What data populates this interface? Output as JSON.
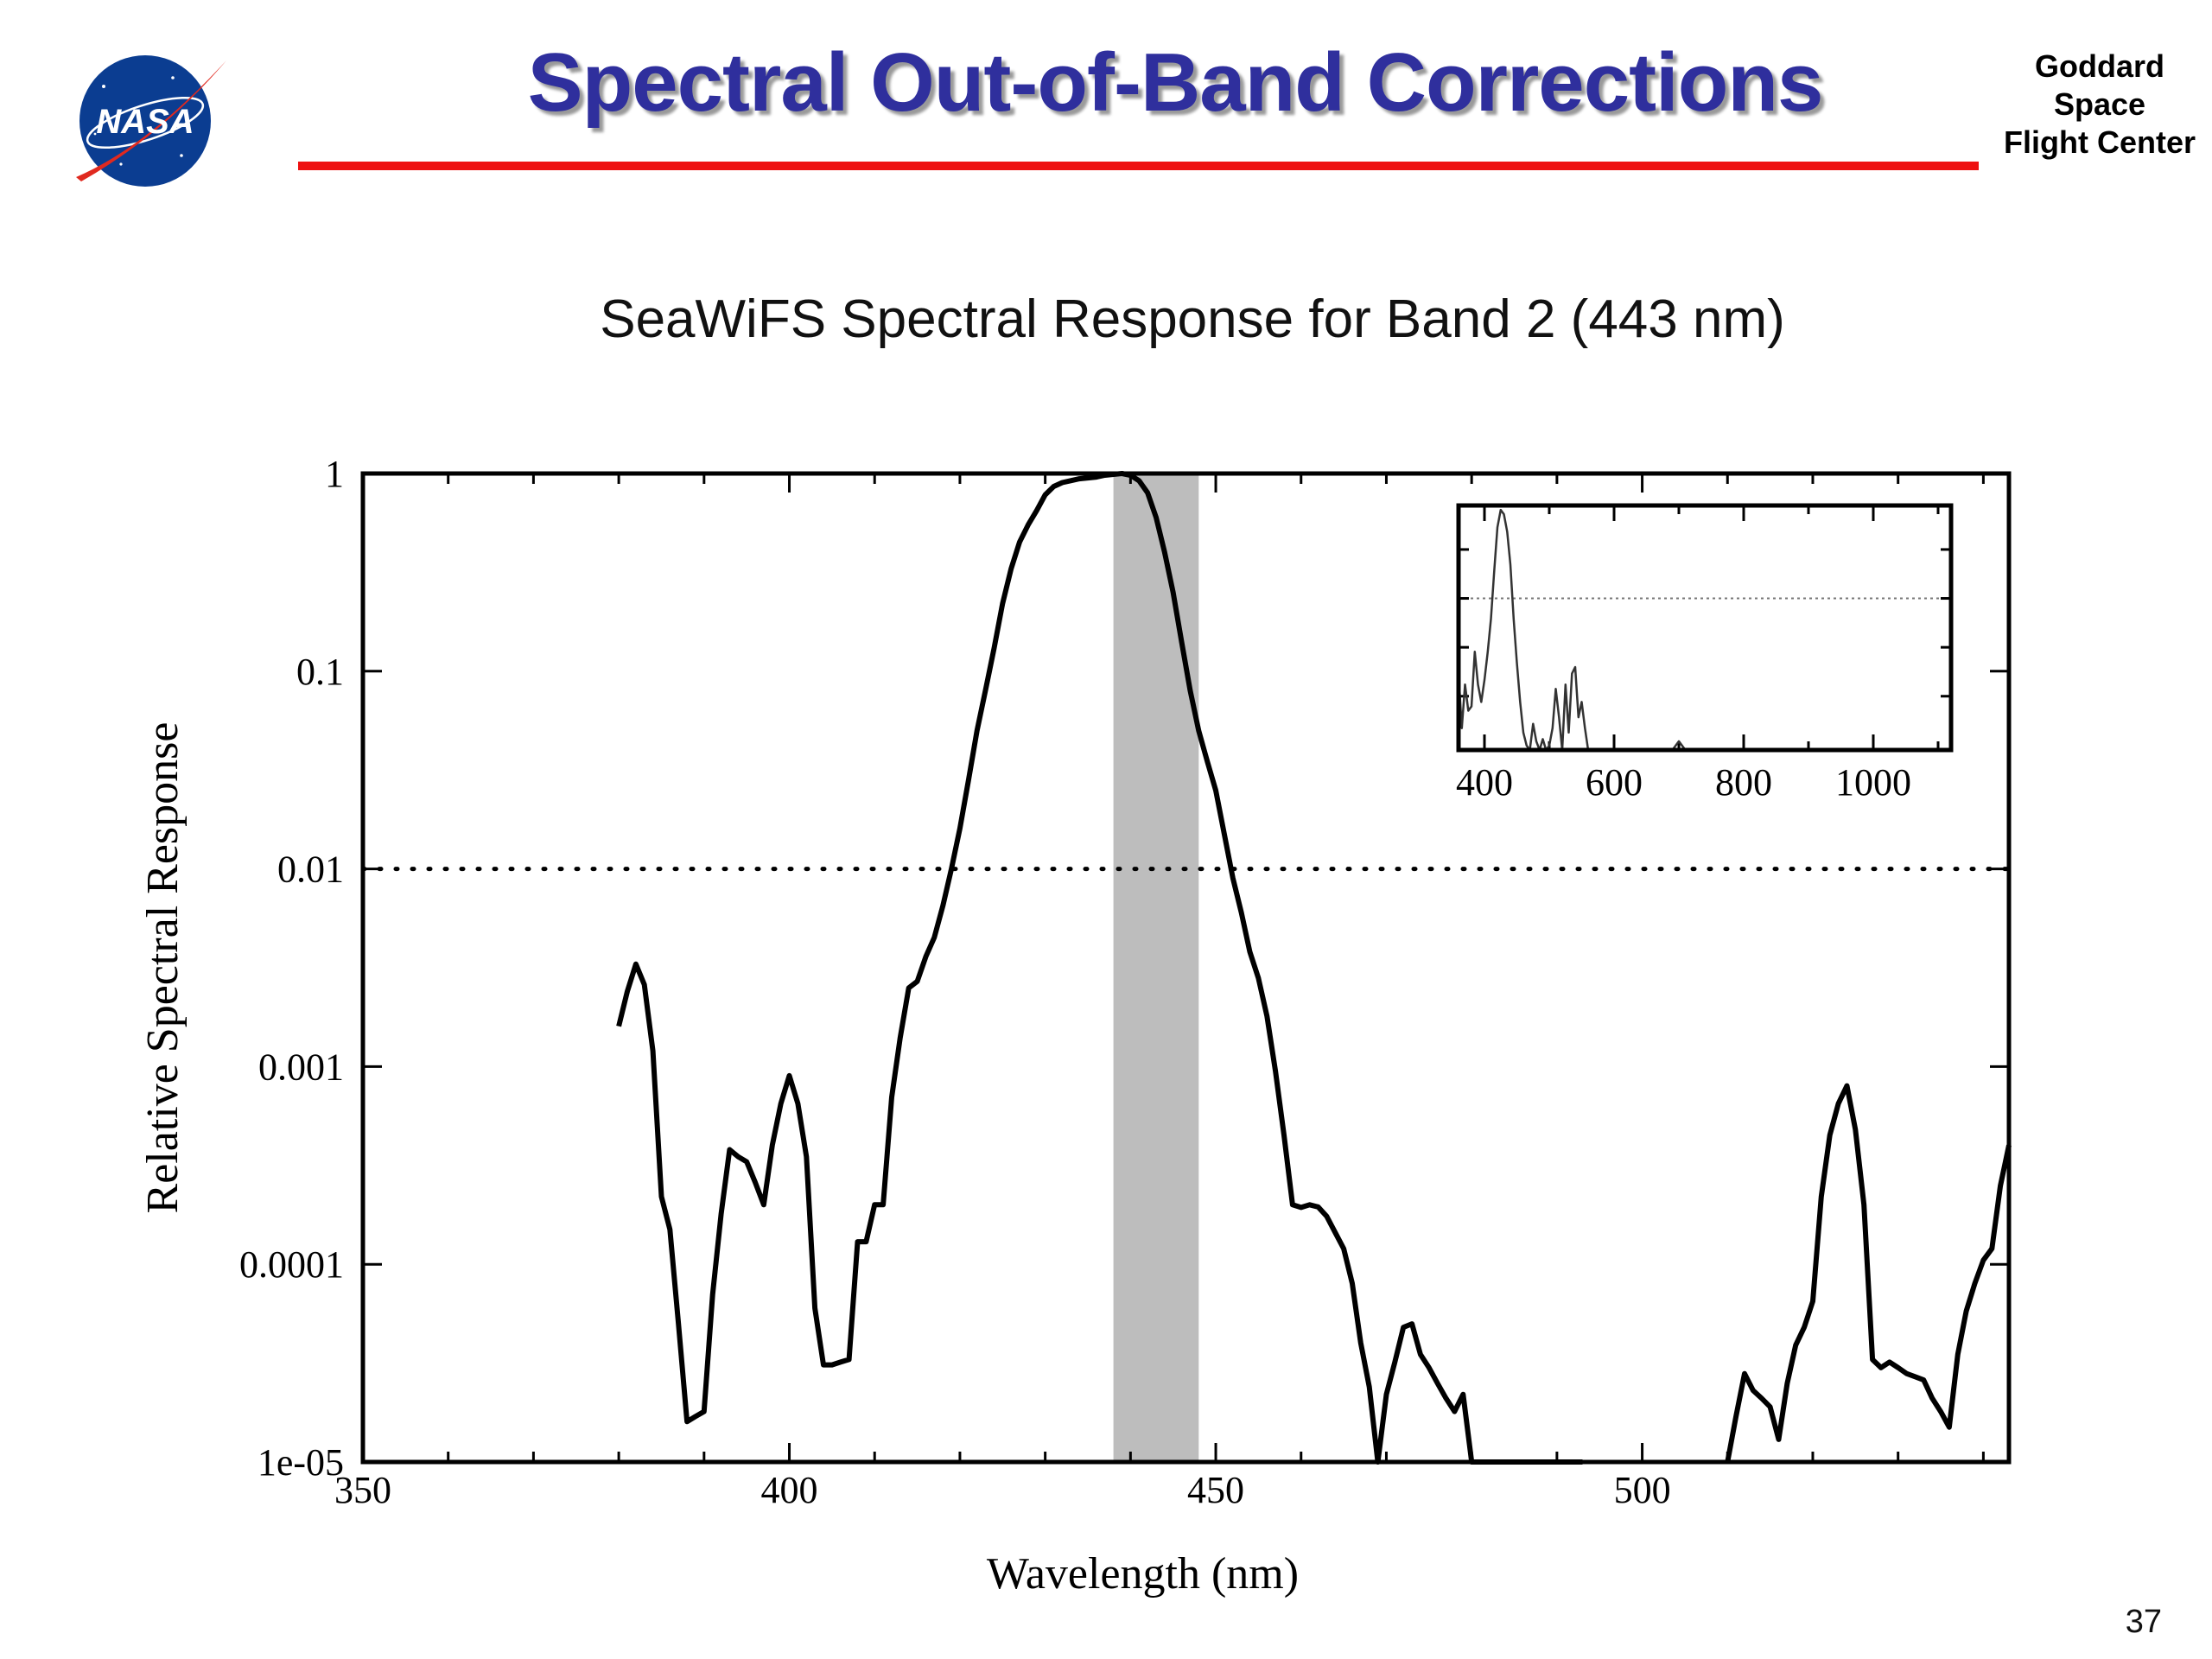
{
  "header": {
    "title": "Spectral Out-of-Band Corrections",
    "org_lines": [
      "Goddard",
      "Space",
      "Flight Center"
    ],
    "logo_text": "NASA"
  },
  "footer": {
    "page_number": "37"
  },
  "colors": {
    "title": "#2f2f9d",
    "title_rule": "#ee1111",
    "band_shade": "#bdbdbd",
    "curve": "#000000"
  },
  "chart_data": [
    {
      "type": "line",
      "title": "SeaWiFS Spectral Response for Band 2 (443 nm)",
      "xlabel": "Wavelength (nm)",
      "ylabel": "Relative Spectral Response",
      "y_scale": "log",
      "xlim": [
        350,
        543
      ],
      "ylim": [
        1e-05,
        1
      ],
      "x_ticks": [
        350,
        400,
        450,
        500
      ],
      "y_ticks": [
        {
          "value": 1,
          "label": "1"
        },
        {
          "value": 0.1,
          "label": "0.1"
        },
        {
          "value": 0.01,
          "label": "0.01"
        },
        {
          "value": 0.001,
          "label": "0.001"
        },
        {
          "value": 0.0001,
          "label": "0.0001"
        },
        {
          "value": 1e-05,
          "label": "1e-05"
        }
      ],
      "threshold_line": {
        "y": 0.01,
        "style": "dotted"
      },
      "shaded_band": {
        "x_start": 438,
        "x_end": 448
      },
      "grid": false,
      "legend": "none",
      "series": [
        {
          "x": [
            380,
            381,
            382,
            383,
            384,
            385,
            386,
            387,
            388,
            389,
            390,
            391,
            392,
            393,
            394,
            395,
            396,
            397,
            398,
            399,
            400,
            401,
            402,
            403,
            404,
            405,
            406,
            407,
            408,
            409,
            410,
            411,
            412,
            413,
            414,
            415,
            416,
            417,
            418,
            419,
            420,
            421,
            422,
            423,
            424,
            425,
            426,
            427,
            428,
            429,
            430,
            431,
            432,
            433,
            434,
            435,
            436,
            437,
            438,
            439,
            440,
            441,
            442,
            443,
            444,
            445,
            446,
            447,
            448,
            449,
            450,
            451,
            452,
            453,
            454,
            455,
            456,
            457,
            458,
            459,
            460,
            461,
            462,
            463,
            464,
            465,
            466,
            467,
            468,
            469,
            470,
            471,
            472,
            473,
            474,
            475,
            476,
            477,
            478,
            479,
            480,
            481,
            482,
            483,
            484,
            485,
            486,
            487,
            488,
            489,
            490,
            491,
            492,
            493
          ],
          "y": [
            0.0016,
            0.0024,
            0.0033,
            0.0026,
            0.0012,
            0.00022,
            0.00015,
            5e-05,
            1.6e-05,
            1.7e-05,
            1.8e-05,
            7e-05,
            0.00018,
            0.00038,
            0.00035,
            0.00033,
            0.00026,
            0.0002,
            0.0004,
            0.00065,
            0.0009,
            0.00065,
            0.00035,
            6e-05,
            3.1e-05,
            3.1e-05,
            3.2e-05,
            3.3e-05,
            0.00013,
            0.00013,
            0.0002,
            0.0002,
            0.0007,
            0.0014,
            0.0025,
            0.0027,
            0.0036,
            0.0045,
            0.0065,
            0.01,
            0.016,
            0.028,
            0.05,
            0.08,
            0.13,
            0.22,
            0.33,
            0.45,
            0.55,
            0.65,
            0.78,
            0.86,
            0.9,
            0.92,
            0.94,
            0.95,
            0.96,
            0.98,
            0.99,
            1.0,
            0.98,
            0.92,
            0.8,
            0.6,
            0.4,
            0.25,
            0.14,
            0.08,
            0.05,
            0.035,
            0.025,
            0.015,
            0.009,
            0.006,
            0.0038,
            0.0028,
            0.0018,
            0.00095,
            0.00045,
            0.0002,
            0.000194,
            0.0002,
            0.000195,
            0.000175,
            0.000145,
            0.00012,
            8e-05,
            4e-05,
            2.4e-05,
            1e-05,
            2.2e-05,
            3.2e-05,
            4.8e-05,
            5e-05,
            3.5e-05,
            3e-05,
            2.5e-05,
            2.1e-05,
            1.8e-05,
            2.2e-05,
            1e-05,
            1e-05,
            1e-05,
            1e-05,
            1e-05,
            1e-05,
            1e-05,
            1e-05,
            1e-05,
            1e-05,
            1e-05,
            1e-05,
            1e-05,
            1e-05
          ]
        },
        {
          "x": [
            510,
            511,
            512,
            513,
            514,
            515,
            516,
            517,
            518,
            519,
            520,
            521,
            522,
            523,
            524,
            525,
            526,
            527,
            528,
            529,
            530,
            531,
            532,
            533,
            534,
            535,
            536,
            537,
            538,
            539,
            540,
            541,
            542,
            543
          ],
          "y": [
            1e-05,
            1.7e-05,
            2.8e-05,
            2.3e-05,
            2.1e-05,
            1.9e-05,
            1.3e-05,
            2.5e-05,
            3.9e-05,
            4.8e-05,
            6.5e-05,
            0.00022,
            0.00045,
            0.00065,
            0.0008,
            0.00048,
            0.0002,
            3.3e-05,
            3e-05,
            3.2e-05,
            3e-05,
            2.8e-05,
            2.7e-05,
            2.6e-05,
            2.1e-05,
            1.8e-05,
            1.5e-05,
            3.5e-05,
            5.8e-05,
            8e-05,
            0.000105,
            0.00012,
            0.00025,
            0.0004
          ]
        }
      ]
    },
    {
      "type": "line",
      "title": "",
      "xlabel": "",
      "ylabel": "",
      "xlim": [
        360,
        1120
      ],
      "x_ticks": [
        400,
        600,
        800,
        1000
      ],
      "threshold_line": {
        "style": "dotted"
      },
      "series": [
        {
          "x": [
            360,
            365,
            370,
            375,
            380,
            385,
            390,
            395,
            400,
            405,
            410,
            415,
            420,
            425,
            430,
            435,
            440,
            445,
            450,
            455,
            460,
            465,
            470,
            475,
            480,
            485,
            490,
            495,
            500,
            505,
            510,
            515,
            520,
            525,
            530,
            535,
            540,
            545,
            550,
            555,
            560,
            565,
            570,
            575,
            580,
            590,
            600,
            650,
            690,
            700,
            710,
            720,
            800,
            900,
            1000,
            1100,
            1120
          ],
          "y": [
            0.35,
            0.1,
            0.3,
            0.18,
            0.2,
            0.45,
            0.3,
            0.22,
            0.32,
            0.45,
            0.6,
            0.82,
            1.02,
            1.1,
            1.08,
            1.0,
            0.85,
            0.6,
            0.4,
            0.22,
            0.08,
            0.02,
            0.0,
            0.12,
            0.04,
            0.0,
            0.05,
            0.0,
            0.02,
            0.1,
            0.28,
            0.15,
            0.0,
            0.3,
            0.08,
            0.35,
            0.38,
            0.15,
            0.22,
            0.1,
            0.0,
            0.0,
            0.0,
            0.0,
            0.0,
            0.0,
            0.0,
            0.0,
            0.0,
            0.04,
            0.0,
            0.0,
            0.0,
            0.0,
            0.0,
            0.0,
            0.0
          ]
        }
      ]
    }
  ]
}
